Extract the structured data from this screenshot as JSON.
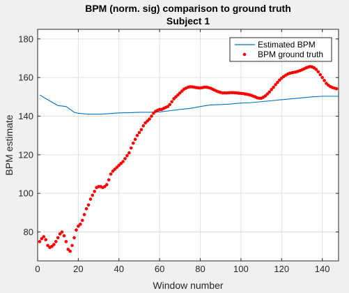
{
  "chart_data": {
    "type": "line",
    "title": "BPM (norm. sig) comparison to ground truth",
    "subtitle": "Subject 1",
    "xlabel": "Window number",
    "ylabel": "BPM estimate",
    "xlim": [
      0,
      148
    ],
    "ylim": [
      65,
      185
    ],
    "xticks": [
      0,
      20,
      40,
      60,
      80,
      100,
      120,
      140
    ],
    "yticks": [
      80,
      100,
      120,
      140,
      160,
      180
    ],
    "grid": true,
    "legend": {
      "placement": "top-right"
    },
    "series": [
      {
        "name": "Estimated BPM",
        "style": "line",
        "color": "#0072BD",
        "points": [
          [
            1,
            151
          ],
          [
            5,
            148.5
          ],
          [
            10,
            145.5
          ],
          [
            14,
            145
          ],
          [
            18,
            142
          ],
          [
            20,
            141.5
          ],
          [
            25,
            141
          ],
          [
            30,
            141
          ],
          [
            35,
            141.3
          ],
          [
            40,
            141.7
          ],
          [
            45,
            141.8
          ],
          [
            50,
            142
          ],
          [
            55,
            142
          ],
          [
            60,
            142.2
          ],
          [
            65,
            142.8
          ],
          [
            70,
            143.5
          ],
          [
            75,
            144
          ],
          [
            80,
            145
          ],
          [
            85,
            145.8
          ],
          [
            90,
            146
          ],
          [
            95,
            146.3
          ],
          [
            100,
            146.8
          ],
          [
            105,
            147
          ],
          [
            110,
            147.5
          ],
          [
            115,
            148
          ],
          [
            120,
            148.5
          ],
          [
            125,
            149
          ],
          [
            130,
            149.5
          ],
          [
            135,
            150
          ],
          [
            140,
            150.3
          ],
          [
            148,
            150.3
          ]
        ]
      },
      {
        "name": "BPM ground truth",
        "style": "markers",
        "color": "#FF0000",
        "points": [
          [
            1,
            75
          ],
          [
            2,
            76.5
          ],
          [
            3,
            77.5
          ],
          [
            4,
            76
          ],
          [
            5,
            73
          ],
          [
            6,
            72
          ],
          [
            7,
            72.5
          ],
          [
            8,
            73.5
          ],
          [
            9,
            75
          ],
          [
            10,
            77
          ],
          [
            11,
            79
          ],
          [
            12,
            80
          ],
          [
            13,
            78
          ],
          [
            14,
            75
          ],
          [
            15,
            71
          ],
          [
            16,
            70
          ],
          [
            17,
            73
          ],
          [
            18,
            77
          ],
          [
            19,
            81
          ],
          [
            20,
            83
          ],
          [
            21,
            84
          ],
          [
            22,
            86
          ],
          [
            23,
            89
          ],
          [
            24,
            92
          ],
          [
            25,
            94
          ],
          [
            26,
            97
          ],
          [
            27,
            99
          ],
          [
            28,
            101
          ],
          [
            29,
            103
          ],
          [
            30,
            103.5
          ],
          [
            31,
            103.5
          ],
          [
            32,
            103
          ],
          [
            33,
            103.5
          ],
          [
            34,
            104.5
          ],
          [
            35,
            107
          ],
          [
            36,
            110
          ],
          [
            37,
            111.5
          ],
          [
            38,
            112.5
          ],
          [
            39,
            113.5
          ],
          [
            40,
            114.5
          ],
          [
            41,
            115.5
          ],
          [
            42,
            116.5
          ],
          [
            43,
            118
          ],
          [
            44,
            119.5
          ],
          [
            45,
            121
          ],
          [
            46,
            123.5
          ],
          [
            47,
            126
          ],
          [
            48,
            128
          ],
          [
            49,
            130
          ],
          [
            50,
            131.5
          ],
          [
            51,
            133
          ],
          [
            52,
            135
          ],
          [
            53,
            136.5
          ],
          [
            54,
            137.5
          ],
          [
            55,
            138.5
          ],
          [
            56,
            140
          ],
          [
            57,
            141.5
          ],
          [
            58,
            142.5
          ],
          [
            59,
            143
          ],
          [
            60,
            143.5
          ],
          [
            61,
            143.5
          ],
          [
            62,
            144
          ],
          [
            63,
            144.5
          ],
          [
            64,
            145
          ],
          [
            65,
            146
          ],
          [
            66,
            147.5
          ],
          [
            67,
            149
          ],
          [
            68,
            150
          ],
          [
            69,
            151
          ],
          [
            70,
            152
          ],
          [
            71,
            153
          ],
          [
            72,
            154
          ],
          [
            73,
            154.5
          ],
          [
            74,
            155
          ],
          [
            75,
            155.2
          ],
          [
            76,
            155.2
          ],
          [
            77,
            155
          ],
          [
            78,
            154.8
          ],
          [
            79,
            154.7
          ],
          [
            80,
            154.6
          ],
          [
            81,
            154.8
          ],
          [
            82,
            155
          ],
          [
            83,
            155
          ],
          [
            84,
            154.8
          ],
          [
            85,
            154.5
          ],
          [
            86,
            154
          ],
          [
            87,
            153.5
          ],
          [
            88,
            153
          ],
          [
            89,
            152.6
          ],
          [
            90,
            152.3
          ],
          [
            91,
            152
          ],
          [
            92,
            152
          ],
          [
            93,
            152
          ],
          [
            94,
            152.1
          ],
          [
            95,
            152.2
          ],
          [
            96,
            152.2
          ],
          [
            97,
            152.1
          ],
          [
            98,
            152
          ],
          [
            99,
            151.9
          ],
          [
            100,
            151.8
          ],
          [
            101,
            151.7
          ],
          [
            102,
            151.5
          ],
          [
            103,
            151.3
          ],
          [
            104,
            151.1
          ],
          [
            105,
            150.8
          ],
          [
            106,
            150.4
          ],
          [
            107,
            150
          ],
          [
            108,
            149.5
          ],
          [
            109,
            149.3
          ],
          [
            110,
            149.3
          ],
          [
            111,
            149.8
          ],
          [
            112,
            150.5
          ],
          [
            113,
            151.5
          ],
          [
            114,
            152.5
          ],
          [
            115,
            153.8
          ],
          [
            116,
            155
          ],
          [
            117,
            156.3
          ],
          [
            118,
            157.5
          ],
          [
            119,
            158.7
          ],
          [
            120,
            159.7
          ],
          [
            121,
            160.5
          ],
          [
            122,
            161.2
          ],
          [
            123,
            161.8
          ],
          [
            124,
            162.2
          ],
          [
            125,
            162.5
          ],
          [
            126,
            162.7
          ],
          [
            127,
            162.9
          ],
          [
            128,
            163.2
          ],
          [
            129,
            163.6
          ],
          [
            130,
            164
          ],
          [
            131,
            164.5
          ],
          [
            132,
            165
          ],
          [
            133,
            165.4
          ],
          [
            134,
            165.7
          ],
          [
            135,
            165.5
          ],
          [
            136,
            165
          ],
          [
            137,
            164.2
          ],
          [
            138,
            163
          ],
          [
            139,
            161.5
          ],
          [
            140,
            160
          ],
          [
            141,
            158.5
          ],
          [
            142,
            157
          ],
          [
            143,
            156
          ],
          [
            144,
            155.3
          ],
          [
            145,
            154.8
          ],
          [
            146,
            154.5
          ],
          [
            147,
            154.2
          ]
        ]
      }
    ]
  }
}
